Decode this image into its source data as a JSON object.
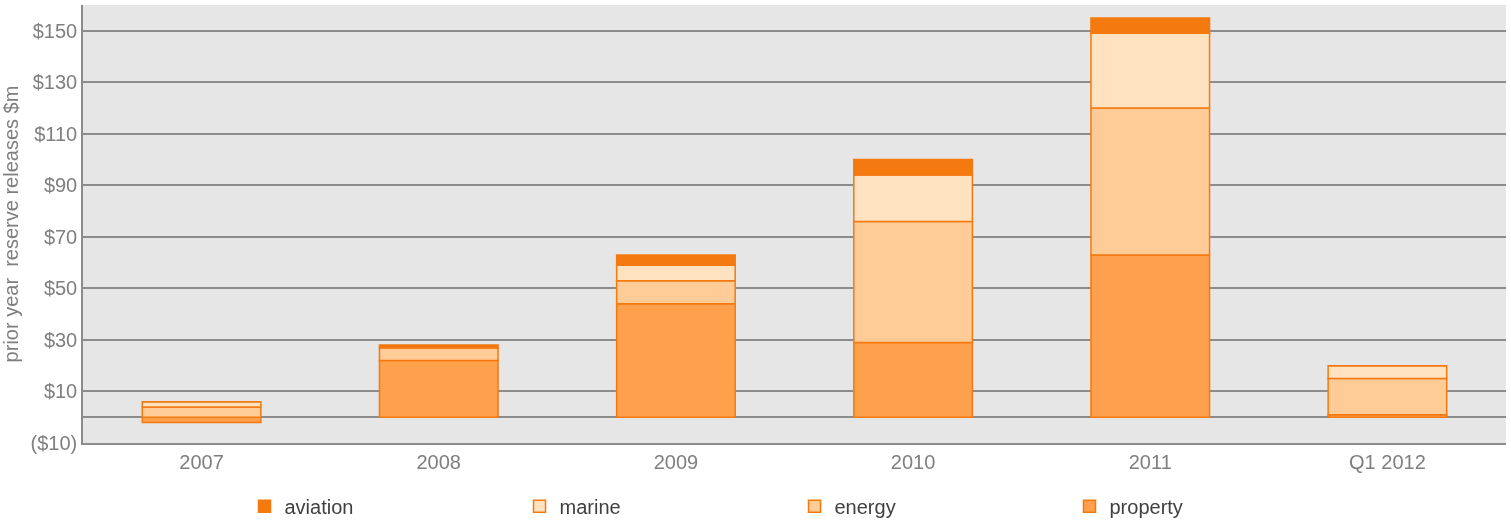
{
  "chart_data": {
    "type": "bar",
    "stacked": true,
    "ylabel": "prior year  reserve releases $m",
    "categories": [
      "2007",
      "2008",
      "2009",
      "2010",
      "2011",
      "Q1 2012"
    ],
    "series": [
      {
        "name": "property",
        "color": "#ffa04c",
        "values": [
          -2,
          22,
          44,
          29,
          63,
          1
        ]
      },
      {
        "name": "energy",
        "color": "#ffcb97",
        "values": [
          4,
          5,
          9,
          47,
          57,
          14
        ]
      },
      {
        "name": "marine",
        "color": "#ffe2c0",
        "values": [
          2,
          0,
          6,
          18,
          29,
          5
        ]
      },
      {
        "name": "aviation",
        "color": "#f47a10",
        "values": [
          0,
          1,
          4,
          6,
          6,
          0
        ]
      }
    ],
    "ylim": [
      -10,
      160
    ],
    "yticks": [
      {
        "value": -10,
        "label": "($10)"
      },
      {
        "value": 10,
        "label": "$10"
      },
      {
        "value": 30,
        "label": "$30"
      },
      {
        "value": 50,
        "label": "$50"
      },
      {
        "value": 70,
        "label": "$70"
      },
      {
        "value": 90,
        "label": "$90"
      },
      {
        "value": 110,
        "label": "$110"
      },
      {
        "value": 130,
        "label": "$130"
      },
      {
        "value": 150,
        "label": "$150"
      }
    ],
    "grid": "y",
    "legend": "bottom"
  }
}
